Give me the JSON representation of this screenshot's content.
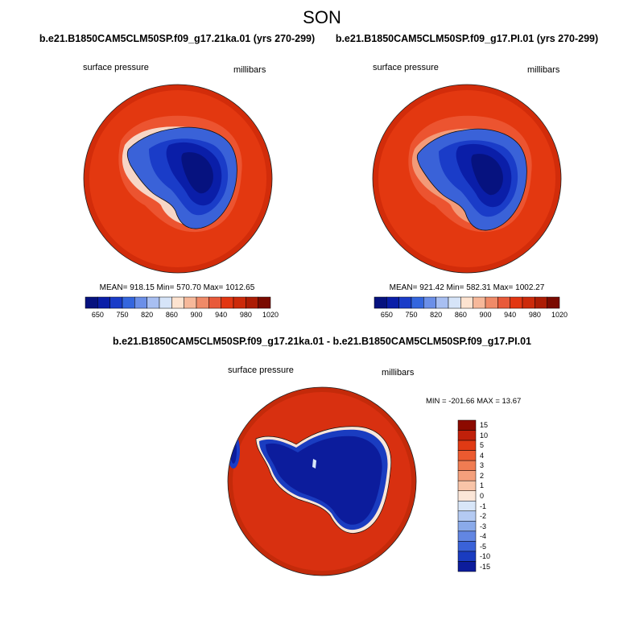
{
  "figure": {
    "season": "SON",
    "panels": [
      {
        "case_title": "b.e21.B1850CAM5CLM50SP.f09_g17.21ka.01 (yrs 270-299)",
        "left_label": "surface pressure",
        "right_label": "millibars",
        "stats": "MEAN= 918.15  Min= 570.70  Max= 1012.65",
        "colorbar": {
          "colors": [
            "#06127f",
            "#0a1ea8",
            "#1a3cc8",
            "#3466de",
            "#6b8fe8",
            "#a8bff2",
            "#d6e4f8",
            "#fde3d0",
            "#f6b89a",
            "#ef8a68",
            "#e85a3a",
            "#e23612",
            "#cc2a0a",
            "#ac1c04",
            "#7a0a00"
          ],
          "ticks": [
            "650",
            "750",
            "820",
            "860",
            "900",
            "940",
            "980",
            "1020"
          ]
        }
      },
      {
        "case_title": "b.e21.B1850CAM5CLM50SP.f09_g17.PI.01 (yrs 270-299)",
        "left_label": "surface pressure",
        "right_label": "millibars",
        "stats": "MEAN= 921.42  Min= 582.31  Max= 1002.27",
        "colorbar": {
          "colors": [
            "#06127f",
            "#0a1ea8",
            "#1a3cc8",
            "#3466de",
            "#6b8fe8",
            "#a8bff2",
            "#d6e4f8",
            "#fde3d0",
            "#f6b89a",
            "#ef8a68",
            "#e85a3a",
            "#e23612",
            "#cc2a0a",
            "#ac1c04",
            "#7a0a00"
          ],
          "ticks": [
            "650",
            "750",
            "820",
            "860",
            "900",
            "940",
            "980",
            "1020"
          ]
        }
      },
      {
        "case_title": "b.e21.B1850CAM5CLM50SP.f09_g17.21ka.01 - b.e21.B1850CAM5CLM50SP.f09_g17.PI.01",
        "left_label": "surface pressure",
        "right_label": "millibars",
        "stats": "MIN = -201.66 MAX =  13.67",
        "colorbar": {
          "colors": [
            "#8c0a00",
            "#c0200a",
            "#e03a14",
            "#ec5a30",
            "#f07c52",
            "#f4a07c",
            "#f8c4a8",
            "#fbe6d8",
            "#d8e6f8",
            "#b4caf2",
            "#8aaaea",
            "#6286e2",
            "#3a62d8",
            "#1a3cc0",
            "#0c1c9c"
          ],
          "ticks": [
            "15",
            "10",
            "5",
            "4",
            "3",
            "2",
            "1",
            "0",
            "-1",
            "-2",
            "-3",
            "-4",
            "-5",
            "-10",
            "-15"
          ]
        }
      }
    ]
  }
}
